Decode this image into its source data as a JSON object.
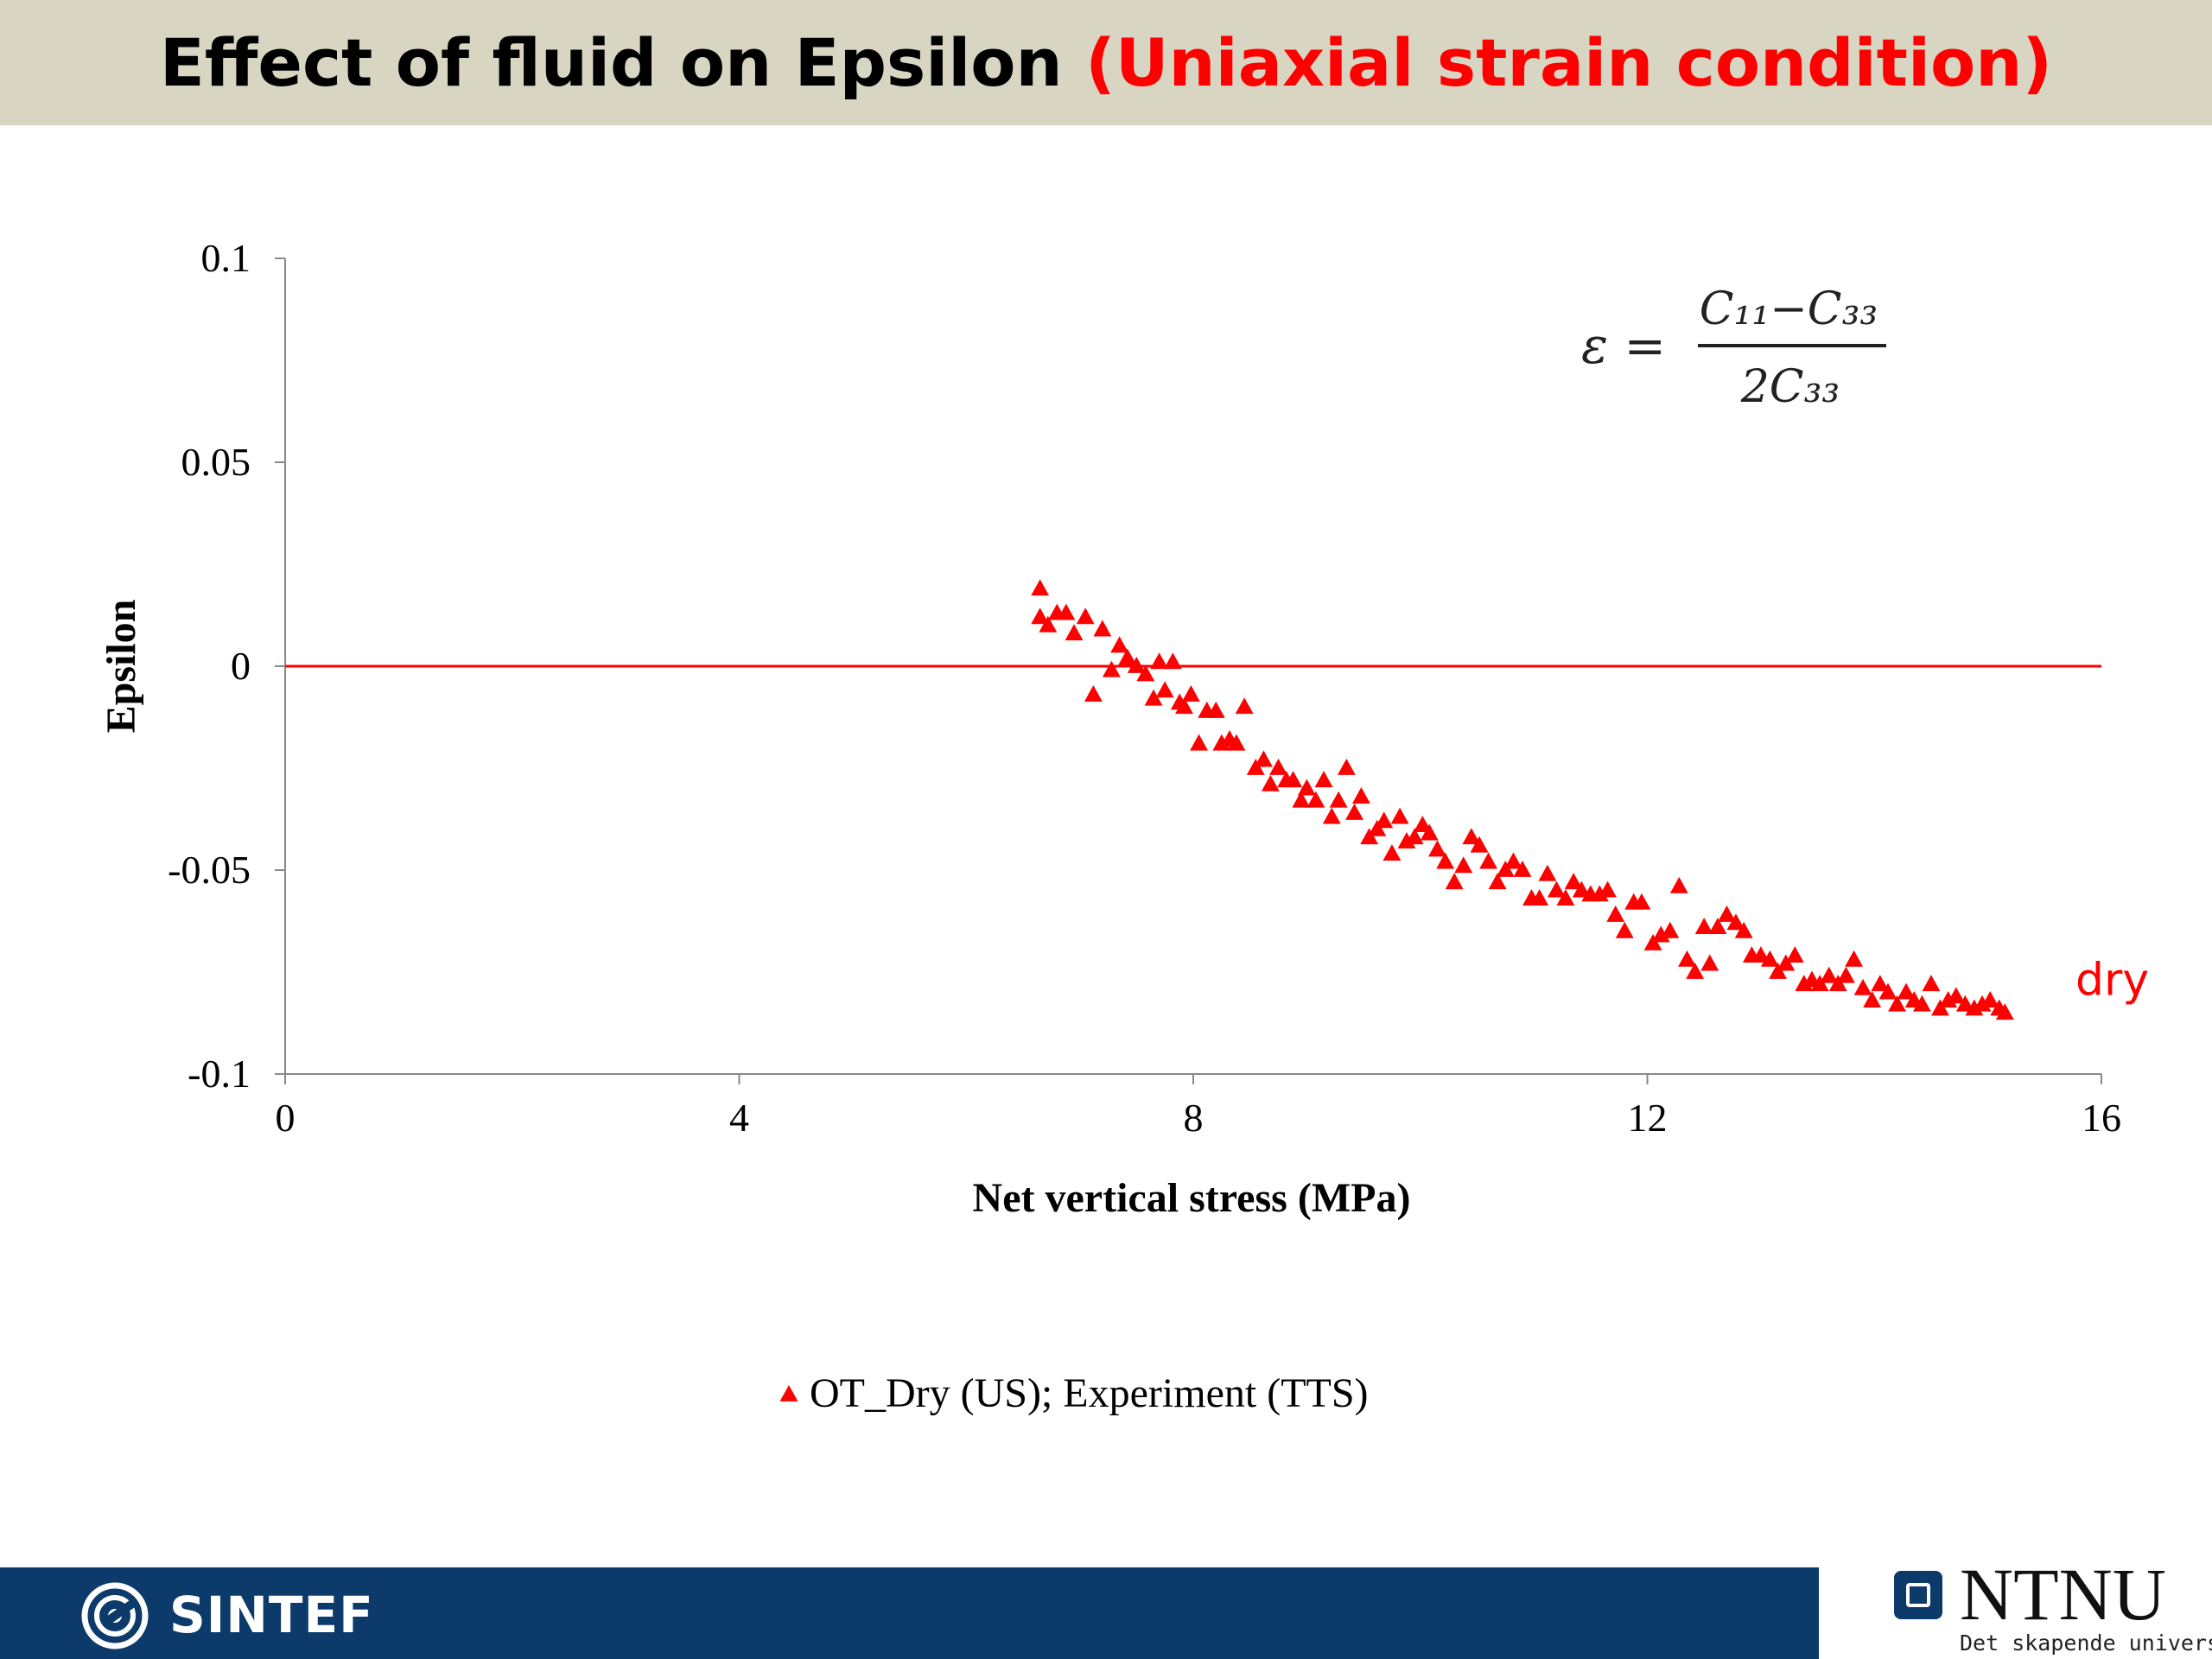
{
  "slide": {
    "title_main": "Effect of fluid on Epsilon ",
    "title_highlight": "(Uniaxial strain condition)"
  },
  "footer": {
    "left_logo_text": "SINTEF",
    "right_logo_text": "NTNU",
    "right_logo_tagline": "Det skapende universitet"
  },
  "colors": {
    "title_bar": "#d8d6c3",
    "highlight": "#ff0000",
    "series": "#ff0000",
    "footer_bar": "#0b3a6b"
  },
  "chart_data": {
    "type": "scatter",
    "title": "",
    "xlabel": "Net vertical stress (MPa)",
    "ylabel": "Epsilon",
    "xlim": [
      0,
      16
    ],
    "ylim": [
      -0.1,
      0.1
    ],
    "xticks": [
      0,
      4,
      8,
      12,
      16
    ],
    "xtick_labels": [
      "0",
      "4",
      "8",
      "12",
      "16"
    ],
    "yticks": [
      0.1,
      0.05,
      0,
      -0.05,
      -0.1
    ],
    "ytick_labels": [
      "0.1",
      "0.05",
      "0",
      "-0.05",
      "-0.1"
    ],
    "grid": false,
    "legend_position": "bottom",
    "formula": {
      "lhs": "ε =",
      "numerator": "C₁₁−C₃₃",
      "denominator": "2C₃₃"
    },
    "reference_lines": [
      {
        "y": 0,
        "x_range": [
          0,
          16
        ],
        "color": "#ff0000"
      }
    ],
    "annotations": [
      {
        "text": "dry",
        "x": 16.05,
        "y": -0.081,
        "color": "#ff0000"
      }
    ],
    "series": [
      {
        "name": "OT_Dry (US); Experiment (TTS)",
        "marker": "triangle",
        "color": "#ff0000",
        "x": [
          6.65,
          6.65,
          6.72,
          6.8,
          6.88,
          6.95,
          7.05,
          7.12,
          7.2,
          7.28,
          7.35,
          7.42,
          7.5,
          7.58,
          7.65,
          7.7,
          7.75,
          7.82,
          7.88,
          7.92,
          7.98,
          8.05,
          8.12,
          8.2,
          8.25,
          8.32,
          8.38,
          8.45,
          8.55,
          8.62,
          8.68,
          8.75,
          8.82,
          8.88,
          8.95,
          9.0,
          9.08,
          9.15,
          9.22,
          9.28,
          9.35,
          9.42,
          9.48,
          9.55,
          9.62,
          9.68,
          9.75,
          9.82,
          9.88,
          9.95,
          10.02,
          10.08,
          10.15,
          10.22,
          10.3,
          10.38,
          10.45,
          10.52,
          10.6,
          10.68,
          10.75,
          10.82,
          10.9,
          10.98,
          11.05,
          11.12,
          11.2,
          11.28,
          11.35,
          11.42,
          11.5,
          11.58,
          11.65,
          11.72,
          11.8,
          11.88,
          11.95,
          12.05,
          12.12,
          12.2,
          12.28,
          12.35,
          12.42,
          12.5,
          12.55,
          12.62,
          12.7,
          12.78,
          12.85,
          12.92,
          13.0,
          13.08,
          13.15,
          13.22,
          13.3,
          13.38,
          13.45,
          13.52,
          13.6,
          13.68,
          13.75,
          13.82,
          13.9,
          13.98,
          14.05,
          14.12,
          14.2,
          14.28,
          14.35,
          14.42,
          14.5,
          14.58,
          14.65,
          14.72,
          14.8,
          14.88,
          14.95,
          15.02,
          15.1,
          15.15
        ],
        "y": [
          0.019,
          0.012,
          0.01,
          0.013,
          0.013,
          0.008,
          0.012,
          -0.007,
          0.009,
          -0.001,
          0.005,
          0.002,
          0.0,
          -0.002,
          -0.008,
          0.001,
          -0.006,
          0.001,
          -0.009,
          -0.01,
          -0.007,
          -0.019,
          -0.011,
          -0.011,
          -0.019,
          -0.018,
          -0.019,
          -0.01,
          -0.025,
          -0.023,
          -0.029,
          -0.025,
          -0.028,
          -0.028,
          -0.033,
          -0.03,
          -0.033,
          -0.028,
          -0.037,
          -0.033,
          -0.025,
          -0.036,
          -0.032,
          -0.042,
          -0.04,
          -0.038,
          -0.046,
          -0.037,
          -0.043,
          -0.042,
          -0.039,
          -0.041,
          -0.045,
          -0.048,
          -0.053,
          -0.049,
          -0.042,
          -0.044,
          -0.048,
          -0.053,
          -0.05,
          -0.048,
          -0.05,
          -0.057,
          -0.057,
          -0.051,
          -0.055,
          -0.057,
          -0.053,
          -0.055,
          -0.056,
          -0.056,
          -0.055,
          -0.061,
          -0.065,
          -0.058,
          -0.058,
          -0.068,
          -0.066,
          -0.065,
          -0.054,
          -0.072,
          -0.075,
          -0.064,
          -0.073,
          -0.064,
          -0.061,
          -0.063,
          -0.065,
          -0.071,
          -0.071,
          -0.072,
          -0.075,
          -0.073,
          -0.071,
          -0.078,
          -0.077,
          -0.078,
          -0.076,
          -0.078,
          -0.076,
          -0.072,
          -0.079,
          -0.082,
          -0.078,
          -0.08,
          -0.083,
          -0.08,
          -0.082,
          -0.083,
          -0.078,
          -0.084,
          -0.082,
          -0.081,
          -0.083,
          -0.084,
          -0.083,
          -0.082,
          -0.084,
          -0.085
        ]
      }
    ]
  }
}
